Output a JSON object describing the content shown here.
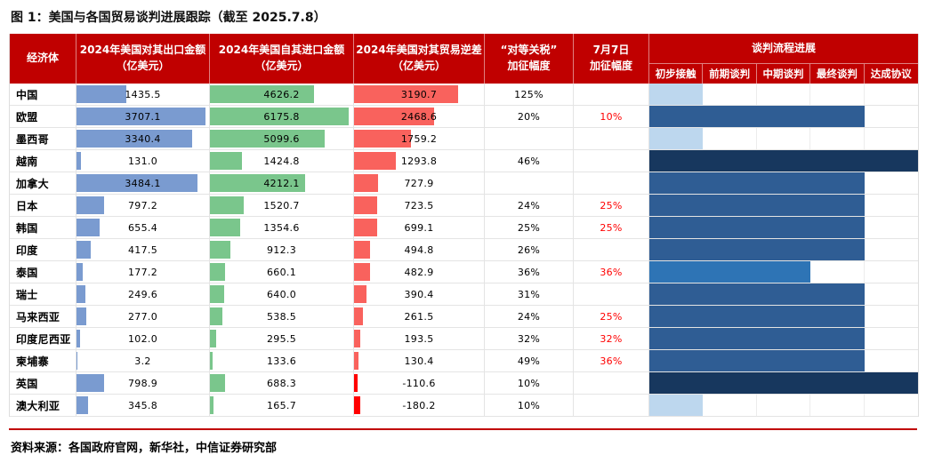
{
  "title": "图 1：美国与各国贸易谈判进展跟踪（截至 2025.7.8）",
  "source": "资料来源：各国政府官网，新华社，中信证券研究部",
  "headers": {
    "economy": "经济体",
    "export_line1": "2024年美国对其出口金额",
    "import_line1": "2024年美国自其进口金额",
    "deficit_line1": "2024年美国对其贸易逆差",
    "unit": "（亿美元）",
    "tariff_line1": "“对等关税”",
    "tariff_line2": "加征幅度",
    "july7_line1": "7月7日",
    "july7_line2": "加征幅度",
    "progress_group": "谈判流程进展",
    "stages": [
      "初步接触",
      "前期谈判",
      "中期谈判",
      "最终谈判",
      "达成协议"
    ]
  },
  "colors": {
    "header_bg": "#C00000",
    "accent_red": "#C00000",
    "export_bar": "#7A9BD0",
    "import_bar": "#7AC68C",
    "deficit_bar": "#F9625D",
    "deficit_negative_bar": "#FF0000",
    "july7_text": "#FF0000",
    "stage_colors": {
      "1": "#BDD7EE",
      "3": "#2E74B5",
      "4": "#2F5D94",
      "5": "#17375E"
    }
  },
  "chart_data": {
    "type": "table",
    "title": "美国与各国贸易谈判进展跟踪（截至 2025.7.8）",
    "unit": "亿美元",
    "columns": [
      "经济体",
      "2024年美国对其出口金额（亿美元）",
      "2024年美国自其进口金额（亿美元）",
      "2024年美国对其贸易逆差（亿美元）",
      "“对等关税”加征幅度",
      "7月7日加征幅度",
      "谈判流程进展"
    ],
    "stage_scale": [
      "初步接触",
      "前期谈判",
      "中期谈判",
      "最终谈判",
      "达成协议"
    ],
    "rows": [
      {
        "economy": "中国",
        "exports": 1435.5,
        "imports": 4626.2,
        "deficit": 3190.7,
        "reciprocal_tariff": "125%",
        "july7_tariff": "",
        "progress_stage": "初步接触",
        "stage_index": 1
      },
      {
        "economy": "欧盟",
        "exports": 3707.1,
        "imports": 6175.8,
        "deficit": 2468.6,
        "reciprocal_tariff": "20%",
        "july7_tariff": "10%",
        "progress_stage": "最终谈判",
        "stage_index": 4
      },
      {
        "economy": "墨西哥",
        "exports": 3340.4,
        "imports": 5099.6,
        "deficit": 1759.2,
        "reciprocal_tariff": "",
        "july7_tariff": "",
        "progress_stage": "初步接触",
        "stage_index": 1
      },
      {
        "economy": "越南",
        "exports": 131.0,
        "imports": 1424.8,
        "deficit": 1293.8,
        "reciprocal_tariff": "46%",
        "july7_tariff": "",
        "progress_stage": "达成协议",
        "stage_index": 5
      },
      {
        "economy": "加拿大",
        "exports": 3484.1,
        "imports": 4212.1,
        "deficit": 727.9,
        "reciprocal_tariff": "",
        "july7_tariff": "",
        "progress_stage": "最终谈判",
        "stage_index": 4
      },
      {
        "economy": "日本",
        "exports": 797.2,
        "imports": 1520.7,
        "deficit": 723.5,
        "reciprocal_tariff": "24%",
        "july7_tariff": "25%",
        "progress_stage": "最终谈判",
        "stage_index": 4
      },
      {
        "economy": "韩国",
        "exports": 655.4,
        "imports": 1354.6,
        "deficit": 699.1,
        "reciprocal_tariff": "25%",
        "july7_tariff": "25%",
        "progress_stage": "最终谈判",
        "stage_index": 4
      },
      {
        "economy": "印度",
        "exports": 417.5,
        "imports": 912.3,
        "deficit": 494.8,
        "reciprocal_tariff": "26%",
        "july7_tariff": "",
        "progress_stage": "最终谈判",
        "stage_index": 4
      },
      {
        "economy": "泰国",
        "exports": 177.2,
        "imports": 660.1,
        "deficit": 482.9,
        "reciprocal_tariff": "36%",
        "july7_tariff": "36%",
        "progress_stage": "中期谈判",
        "stage_index": 3
      },
      {
        "economy": "瑞士",
        "exports": 249.6,
        "imports": 640.0,
        "deficit": 390.4,
        "reciprocal_tariff": "31%",
        "july7_tariff": "",
        "progress_stage": "最终谈判",
        "stage_index": 4
      },
      {
        "economy": "马来西亚",
        "exports": 277.0,
        "imports": 538.5,
        "deficit": 261.5,
        "reciprocal_tariff": "24%",
        "july7_tariff": "25%",
        "progress_stage": "最终谈判",
        "stage_index": 4
      },
      {
        "economy": "印度尼西亚",
        "exports": 102.0,
        "imports": 295.5,
        "deficit": 193.5,
        "reciprocal_tariff": "32%",
        "july7_tariff": "32%",
        "progress_stage": "最终谈判",
        "stage_index": 4
      },
      {
        "economy": "柬埔寨",
        "exports": 3.2,
        "imports": 133.6,
        "deficit": 130.4,
        "reciprocal_tariff": "49%",
        "july7_tariff": "36%",
        "progress_stage": "最终谈判",
        "stage_index": 4
      },
      {
        "economy": "英国",
        "exports": 798.9,
        "imports": 688.3,
        "deficit": -110.6,
        "reciprocal_tariff": "10%",
        "july7_tariff": "",
        "progress_stage": "达成协议",
        "stage_index": 5
      },
      {
        "economy": "澳大利亚",
        "exports": 345.8,
        "imports": 165.7,
        "deficit": -180.2,
        "reciprocal_tariff": "10%",
        "july7_tariff": "",
        "progress_stage": "初步接触",
        "stage_index": 1
      }
    ]
  }
}
